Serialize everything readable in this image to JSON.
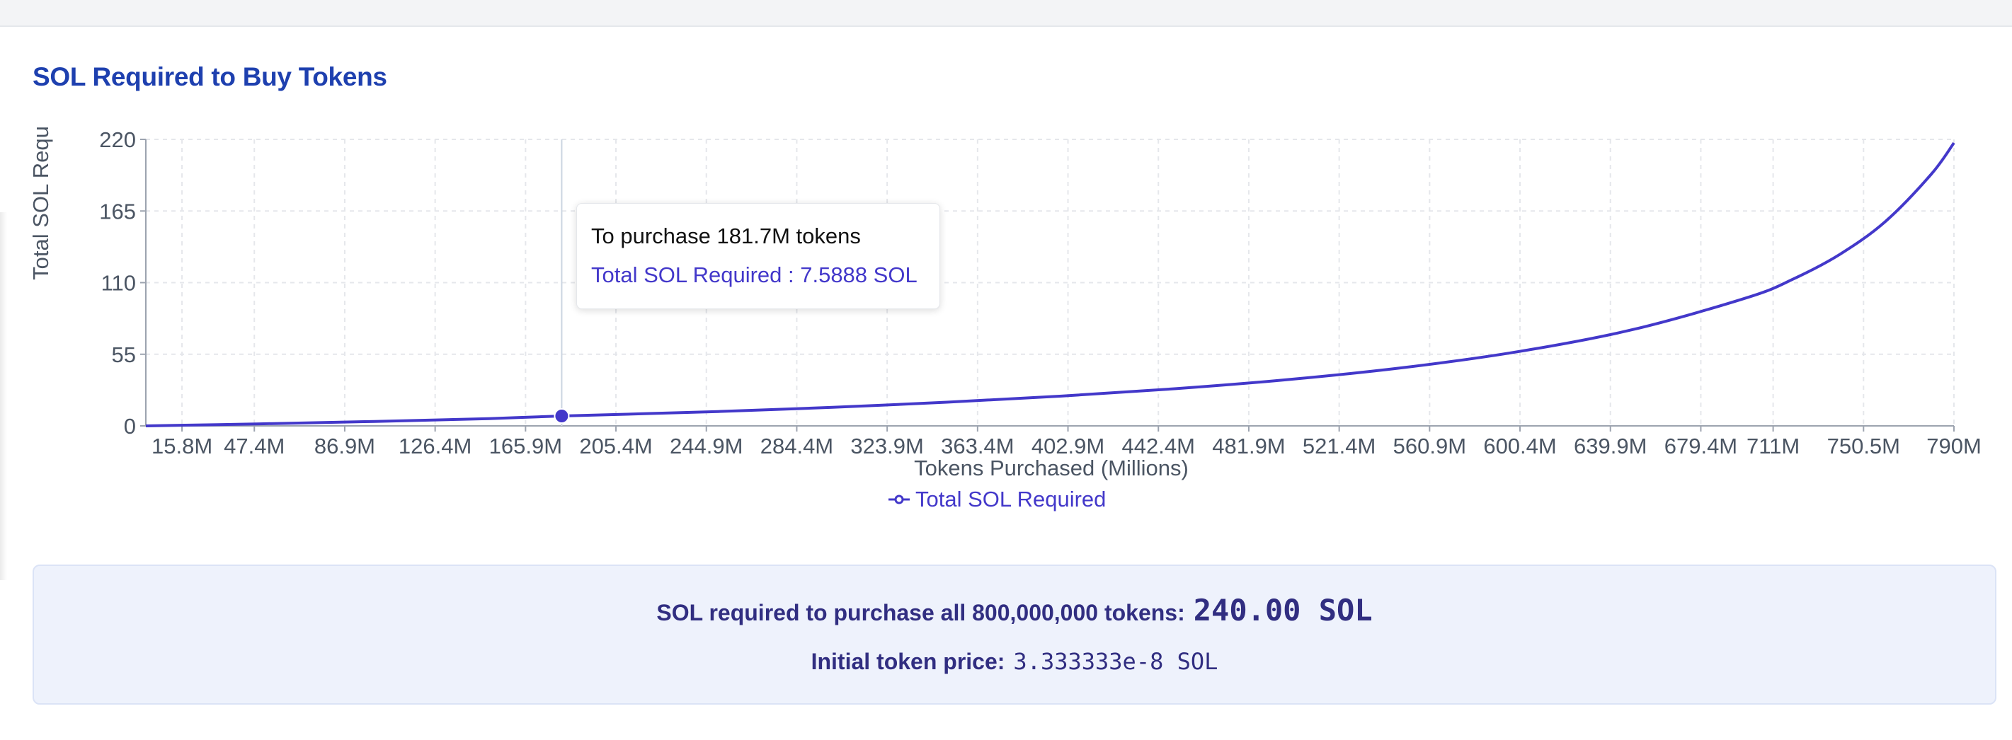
{
  "title": "SOL Required to Buy Tokens",
  "tooltip": {
    "heading": "To purchase 181.7M tokens",
    "value_line": "Total SOL Required : 7.5888 SOL"
  },
  "legend": {
    "label": "Total SOL Required"
  },
  "summary": {
    "all_label": "SOL required to purchase all 800,000,000 tokens:",
    "all_value": "240.00 SOL",
    "price_label": "Initial token price:",
    "price_value": "3.333333e-8 SOL"
  },
  "colors": {
    "line": "#4338ca",
    "title": "#1e40af",
    "grid": "#e5e7eb"
  },
  "chart_data": {
    "type": "line",
    "title": "SOL Required to Buy Tokens",
    "xlabel": "Tokens Purchased (Millions)",
    "ylabel": "Total SOL Requ",
    "xlim": [
      0,
      790
    ],
    "ylim": [
      0,
      220
    ],
    "x_ticks": [
      15.8,
      47.4,
      86.9,
      126.4,
      165.9,
      205.4,
      244.9,
      284.4,
      323.9,
      363.4,
      402.9,
      442.4,
      481.9,
      521.4,
      560.9,
      600.4,
      639.9,
      679.4,
      711,
      750.5,
      790
    ],
    "x_tick_labels": [
      "15.8M",
      "47.4M",
      "86.9M",
      "126.4M",
      "165.9M",
      "205.4M",
      "244.9M",
      "284.4M",
      "323.9M",
      "363.4M",
      "402.9M",
      "442.4M",
      "481.9M",
      "521.4M",
      "560.9M",
      "600.4M",
      "639.9M",
      "679.4M",
      "711M",
      "750.5M",
      "790M"
    ],
    "y_ticks": [
      0,
      55,
      110,
      165,
      220
    ],
    "grid": true,
    "legend_position": "bottom-center",
    "series": [
      {
        "name": "Total SOL Required",
        "x": [
          0,
          50,
          100,
          150,
          181.7,
          250,
          300,
          350,
          400,
          450,
          500,
          550,
          600,
          650,
          700,
          720,
          740,
          760,
          780,
          790
        ],
        "y": [
          0,
          1.58,
          3.42,
          5.58,
          7.59,
          11.03,
          14.29,
          18.18,
          22.86,
          28.57,
          35.71,
          44.87,
          57.14,
          74.07,
          98.7,
          112.94,
          131.55,
          156.88,
          193.09,
          217.28
        ]
      }
    ],
    "active_point": {
      "x": 181.7,
      "y": 7.5888
    }
  }
}
